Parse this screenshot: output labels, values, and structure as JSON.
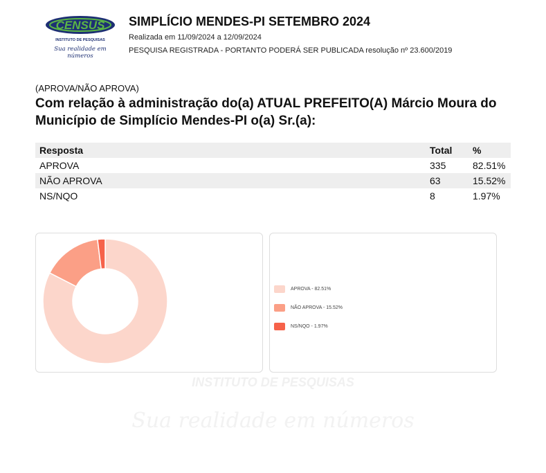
{
  "header": {
    "logo_text": "CENSUS",
    "logo_subtext": "INSTITUTO DE PESQUISAS",
    "logo_tagline": "Sua realidade em números",
    "title": "SIMPLÍCIO MENDES-PI SETEMBRO 2024",
    "dates": "Realizada em 11/09/2024 a 12/09/2024",
    "registration": "PESQUISA REGISTRADA - PORTANTO PODERÁ SER PUBLICADA resolução nº 23.600/2019"
  },
  "question": {
    "tag": "(APROVA/NÃO APROVA)",
    "text": "Com relação à administração do(a) ATUAL PREFEITO(A) Márcio Moura do Município de Simplício Mendes-PI o(a) Sr.(a):"
  },
  "table": {
    "headers": [
      "Resposta",
      "Total",
      "%"
    ],
    "rows": [
      {
        "resposta": "APROVA",
        "total": "335",
        "pct": "82.51%"
      },
      {
        "resposta": "NÃO APROVA",
        "total": "63",
        "pct": "15.52%"
      },
      {
        "resposta": "NS/NQO",
        "total": "8",
        "pct": "1.97%"
      }
    ]
  },
  "chart_data": {
    "type": "pie",
    "categories": [
      "APROVA",
      "NÃO APROVA",
      "NS/NQO"
    ],
    "values": [
      82.51,
      15.52,
      1.97
    ],
    "colors": [
      "#fcd6cb",
      "#fb9f86",
      "#f6624a"
    ],
    "legend": [
      "APROVA - 82.51%",
      "NÃO APROVA - 15.52%",
      "NS/NQO - 1.97%"
    ],
    "legend_position": "right",
    "donut": true
  },
  "watermark": {
    "institute": "INSTITUTO DE PESQUISAS",
    "tagline": "Sua realidade em números"
  },
  "colors": {
    "logo_blue": "#1d2f73",
    "logo_green": "#5bb545"
  }
}
